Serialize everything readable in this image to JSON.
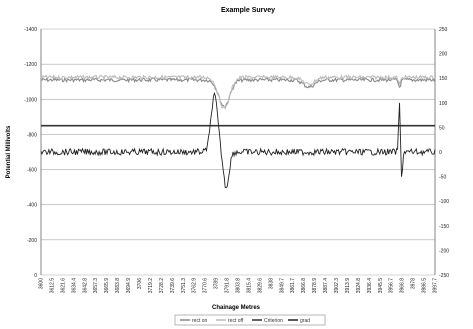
{
  "chart_data": {
    "type": "line",
    "title": "Example Survey",
    "xlabel": "Chainage Metres",
    "ylabel": "Potential Millivolts",
    "x_tick_labels": [
      "3600",
      "3612.5",
      "3621.6",
      "3634.4",
      "3642.8",
      "3657.3",
      "3665.9",
      "3683.8",
      "3694.9",
      "3706",
      "3719.2",
      "3728.2",
      "3739.6",
      "3751.3",
      "3762.9",
      "3770.6",
      "3789",
      "3791.8",
      "3803.8",
      "3815.4",
      "3829.6",
      "3838",
      "3849.7",
      "3861.7",
      "3866.8",
      "3878.9",
      "3887.4",
      "3902.3",
      "3913.9",
      "3924.8",
      "3936.4",
      "3945.5",
      "3956.7",
      "3966.8",
      "3978",
      "3986.5",
      "3997.7"
    ],
    "y_left_ticks": [
      0,
      -200,
      -400,
      -600,
      -800,
      -1000,
      -1200,
      -1400
    ],
    "y_right_ticks": [
      -250,
      -200,
      -150,
      -100,
      -50,
      0,
      50,
      100,
      150,
      200,
      250
    ],
    "y_left_range": [
      0,
      -1400
    ],
    "y_right_range": [
      -250,
      250
    ],
    "grid": true,
    "legend_position": "bottom",
    "series": [
      {
        "name": "rect on",
        "color": "#888888",
        "axis": "left",
        "style": "baseline_noisy",
        "baseline": -1110,
        "noise": 10,
        "features": [
          {
            "x": 0.465,
            "depth": 150,
            "width": 0.02
          },
          {
            "x": 0.68,
            "depth": 40,
            "width": 0.02
          },
          {
            "x": 0.91,
            "depth": 40,
            "width": 0.004
          }
        ]
      },
      {
        "name": "rect off",
        "color": "#bbbbbb",
        "axis": "left",
        "style": "baseline_noisy",
        "baseline": -1125,
        "noise": 10,
        "features": [
          {
            "x": 0.465,
            "depth": 175,
            "width": 0.02
          },
          {
            "x": 0.68,
            "depth": 40,
            "width": 0.02
          },
          {
            "x": 0.91,
            "depth": 40,
            "width": 0.004
          }
        ]
      },
      {
        "name": "Criterion",
        "color": "#333333",
        "axis": "left",
        "style": "flat",
        "value": -850
      },
      {
        "name": "grad",
        "color": "#222222",
        "axis": "left",
        "style": "baseline_noisy",
        "baseline": -700,
        "noise": 18,
        "features": [
          {
            "x": 0.44,
            "depth": -320,
            "width": 0.012
          },
          {
            "x": 0.47,
            "depth": 200,
            "width": 0.01
          },
          {
            "x": 0.91,
            "depth": -290,
            "width": 0.003
          },
          {
            "x": 0.915,
            "depth": 170,
            "width": 0.003
          }
        ]
      }
    ],
    "legend": [
      "rect on",
      "rect off",
      "Criterion",
      "grad"
    ]
  }
}
